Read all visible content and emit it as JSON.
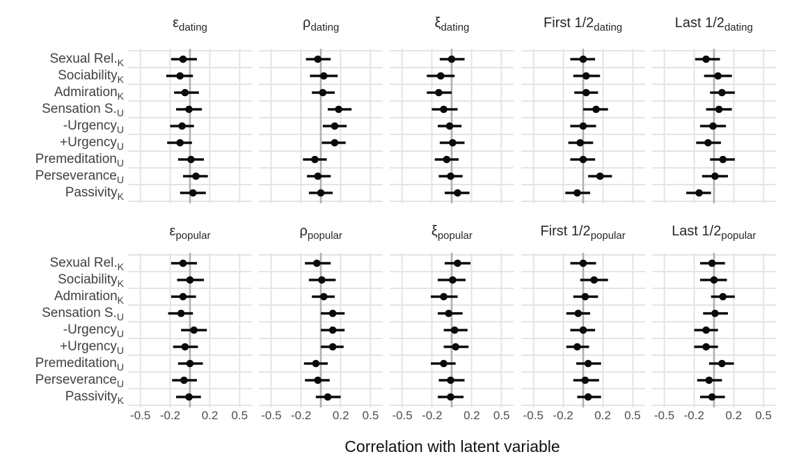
{
  "chart_data": {
    "type": "scatter",
    "subtype": "faceted-pointrange-forest",
    "x_axis": {
      "label": "Correlation with latent variable",
      "ticks": [
        -0.5,
        -0.2,
        0.2,
        0.5
      ],
      "tick_labels": [
        "-0.5",
        "-0.2",
        "0.2",
        "0.5"
      ],
      "range": [
        -0.62,
        0.62
      ],
      "zero_line": true
    },
    "y_categories": [
      {
        "text": "Sexual Rel.",
        "sub": "K"
      },
      {
        "text": "Sociability",
        "sub": "K"
      },
      {
        "text": "Admiration",
        "sub": "K"
      },
      {
        "text": "Sensation S.",
        "sub": "U"
      },
      {
        "text": "-Urgency",
        "sub": "U"
      },
      {
        "text": "+Urgency",
        "sub": "U"
      },
      {
        "text": "Premeditation",
        "sub": "U"
      },
      {
        "text": "Perseverance",
        "sub": "U"
      },
      {
        "text": "Passivity",
        "sub": "K"
      }
    ],
    "facet_grid": {
      "rows": [
        "dating",
        "popular"
      ],
      "cols": [
        "ε",
        "ρ",
        "ξ",
        "First 1/2",
        "Last 1/2"
      ]
    },
    "facets": [
      {
        "title_main": "ε",
        "title_sub": "dating",
        "points": [
          [
            -0.07,
            -0.19,
            0.07
          ],
          [
            -0.1,
            -0.24,
            0.03
          ],
          [
            -0.05,
            -0.16,
            0.09
          ],
          [
            -0.01,
            -0.14,
            0.12
          ],
          [
            -0.08,
            -0.2,
            0.04
          ],
          [
            -0.1,
            -0.23,
            0.02
          ],
          [
            0.01,
            -0.12,
            0.14
          ],
          [
            0.06,
            -0.07,
            0.18
          ],
          [
            0.03,
            -0.1,
            0.16
          ]
        ]
      },
      {
        "title_main": "ρ",
        "title_sub": "dating",
        "points": [
          [
            -0.03,
            -0.15,
            0.1
          ],
          [
            0.03,
            -0.11,
            0.17
          ],
          [
            0.02,
            -0.09,
            0.14
          ],
          [
            0.18,
            0.07,
            0.31
          ],
          [
            0.14,
            0.02,
            0.26
          ],
          [
            0.14,
            0.01,
            0.25
          ],
          [
            -0.06,
            -0.18,
            0.06
          ],
          [
            -0.03,
            -0.14,
            0.1
          ],
          [
            0.0,
            -0.12,
            0.12
          ]
        ]
      },
      {
        "title_main": "ξ",
        "title_sub": "dating",
        "points": [
          [
            0.0,
            -0.12,
            0.13
          ],
          [
            -0.11,
            -0.25,
            0.03
          ],
          [
            -0.13,
            -0.25,
            0.0
          ],
          [
            -0.08,
            -0.2,
            0.06
          ],
          [
            -0.02,
            -0.14,
            0.1
          ],
          [
            0.01,
            -0.12,
            0.13
          ],
          [
            -0.05,
            -0.17,
            0.07
          ],
          [
            -0.01,
            -0.13,
            0.11
          ],
          [
            0.06,
            -0.07,
            0.18
          ]
        ]
      },
      {
        "title_main": "First 1/2",
        "title_sub": "dating",
        "points": [
          [
            0.0,
            -0.13,
            0.12
          ],
          [
            0.03,
            -0.1,
            0.17
          ],
          [
            0.03,
            -0.09,
            0.15
          ],
          [
            0.13,
            0.0,
            0.25
          ],
          [
            0.0,
            -0.13,
            0.13
          ],
          [
            -0.03,
            -0.15,
            0.1
          ],
          [
            0.0,
            -0.13,
            0.12
          ],
          [
            0.17,
            0.05,
            0.29
          ],
          [
            -0.06,
            -0.18,
            0.07
          ]
        ]
      },
      {
        "title_main": "Last 1/2",
        "title_sub": "dating",
        "points": [
          [
            -0.08,
            -0.19,
            0.06
          ],
          [
            0.04,
            -0.1,
            0.18
          ],
          [
            0.08,
            -0.04,
            0.21
          ],
          [
            0.05,
            -0.08,
            0.18
          ],
          [
            -0.01,
            -0.14,
            0.12
          ],
          [
            -0.06,
            -0.18,
            0.07
          ],
          [
            0.09,
            -0.04,
            0.21
          ],
          [
            0.01,
            -0.12,
            0.14
          ],
          [
            -0.15,
            -0.28,
            -0.03
          ]
        ]
      },
      {
        "title_main": "ε",
        "title_sub": "popular",
        "points": [
          [
            -0.07,
            -0.19,
            0.07
          ],
          [
            0.0,
            -0.13,
            0.14
          ],
          [
            -0.07,
            -0.19,
            0.06
          ],
          [
            -0.09,
            -0.22,
            0.03
          ],
          [
            0.04,
            -0.09,
            0.17
          ],
          [
            -0.05,
            -0.17,
            0.08
          ],
          [
            0.0,
            -0.12,
            0.13
          ],
          [
            -0.06,
            -0.18,
            0.07
          ],
          [
            -0.01,
            -0.14,
            0.11
          ]
        ]
      },
      {
        "title_main": "ρ",
        "title_sub": "popular",
        "points": [
          [
            -0.04,
            -0.16,
            0.1
          ],
          [
            0.01,
            -0.12,
            0.15
          ],
          [
            0.03,
            -0.09,
            0.14
          ],
          [
            0.12,
            0.0,
            0.24
          ],
          [
            0.12,
            0.0,
            0.24
          ],
          [
            0.12,
            0.0,
            0.23
          ],
          [
            -0.05,
            -0.17,
            0.07
          ],
          [
            -0.03,
            -0.16,
            0.09
          ],
          [
            0.07,
            -0.05,
            0.2
          ]
        ]
      },
      {
        "title_main": "ξ",
        "title_sub": "popular",
        "points": [
          [
            0.06,
            -0.07,
            0.19
          ],
          [
            0.01,
            -0.14,
            0.14
          ],
          [
            -0.08,
            -0.21,
            0.06
          ],
          [
            -0.03,
            -0.14,
            0.11
          ],
          [
            0.03,
            -0.08,
            0.16
          ],
          [
            0.04,
            -0.08,
            0.17
          ],
          [
            -0.08,
            -0.21,
            0.04
          ],
          [
            -0.01,
            -0.13,
            0.13
          ],
          [
            -0.01,
            -0.14,
            0.12
          ]
        ]
      },
      {
        "title_main": "First 1/2",
        "title_sub": "popular",
        "points": [
          [
            0.0,
            -0.13,
            0.13
          ],
          [
            0.11,
            -0.03,
            0.25
          ],
          [
            0.02,
            -0.1,
            0.15
          ],
          [
            -0.05,
            -0.17,
            0.07
          ],
          [
            0.0,
            -0.13,
            0.12
          ],
          [
            -0.06,
            -0.17,
            0.06
          ],
          [
            0.05,
            -0.07,
            0.18
          ],
          [
            0.02,
            -0.1,
            0.16
          ],
          [
            0.05,
            -0.06,
            0.18
          ]
        ]
      },
      {
        "title_main": "Last 1/2",
        "title_sub": "popular",
        "points": [
          [
            -0.02,
            -0.14,
            0.11
          ],
          [
            0.0,
            -0.14,
            0.13
          ],
          [
            0.09,
            -0.03,
            0.21
          ],
          [
            0.01,
            -0.11,
            0.14
          ],
          [
            -0.08,
            -0.2,
            0.04
          ],
          [
            -0.08,
            -0.2,
            0.04
          ],
          [
            0.08,
            -0.05,
            0.2
          ],
          [
            -0.05,
            -0.17,
            0.08
          ],
          [
            -0.02,
            -0.14,
            0.11
          ]
        ]
      }
    ],
    "colors": {
      "point": "#0a0a0a",
      "interval": "#0a0a0a",
      "grid": "#e4e4e4",
      "zero_line": "#b0b0b0",
      "tick_text": "#4d4d4d",
      "category_text": "#404040",
      "strip_text": "#262626",
      "axis_title_text": "#111111",
      "background": "#ffffff"
    },
    "legend": "none"
  }
}
